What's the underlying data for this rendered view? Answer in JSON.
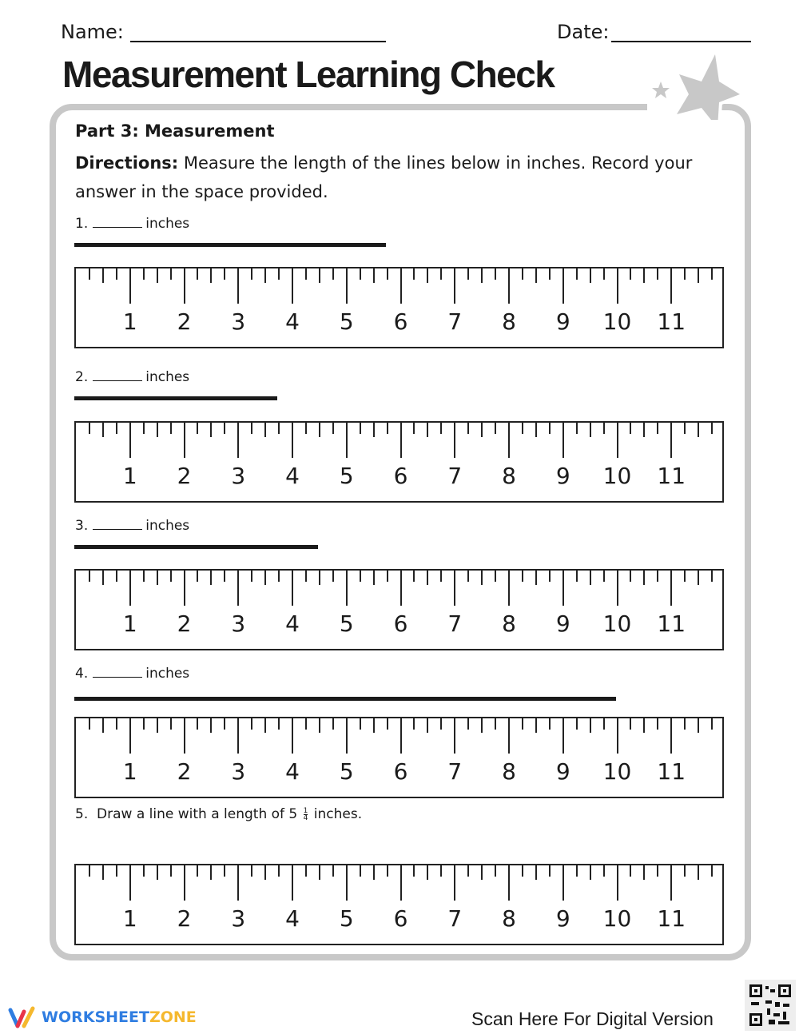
{
  "header": {
    "name_label": "Name:",
    "date_label": "Date:"
  },
  "title": "Measurement Learning Check",
  "part": "Part 3: Measurement",
  "directions": {
    "label": "Directions:",
    "text": " Measure the length of the lines below in inches. Record your answer in the space provided."
  },
  "unit": "inches",
  "questions": [
    {
      "number": "1.",
      "line_length_in": 5.75
    },
    {
      "number": "2.",
      "line_length_in": 3.75
    },
    {
      "number": "3.",
      "line_length_in": 4.5
    },
    {
      "number": "4.",
      "line_length_in": 10
    }
  ],
  "question5": {
    "number": "5.",
    "text": "Draw a line with a length of 5",
    "frac_num": "1",
    "frac_den": "4",
    "text_end": "inches."
  },
  "ruler": {
    "labels": [
      "1",
      "2",
      "3",
      "4",
      "5",
      "6",
      "7",
      "8",
      "9",
      "10",
      "11"
    ],
    "ticks_per_inch": 4
  },
  "footer": {
    "logo_a": "WORKSHEET",
    "logo_b": "ZONE",
    "scan": "Scan Here For Digital Version"
  },
  "colors": {
    "frame": "#c8c8c8",
    "logo_blue": "#2f7de1",
    "logo_yellow": "#f5b82e",
    "logo_red": "#e8344a"
  }
}
